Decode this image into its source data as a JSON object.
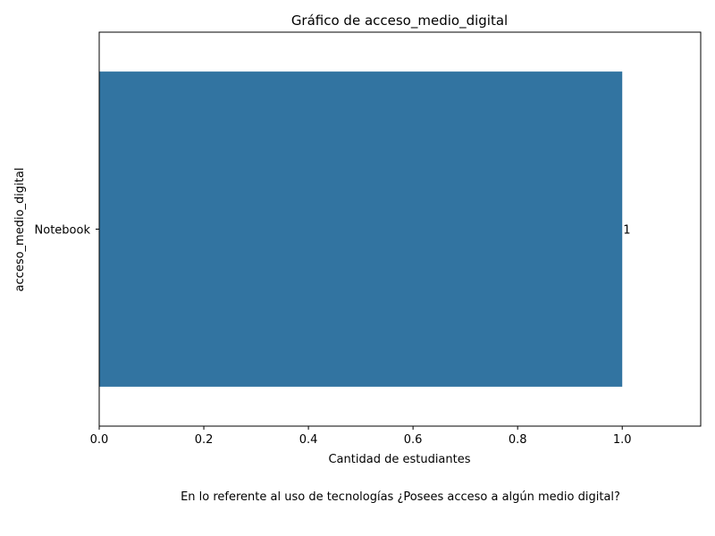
{
  "chart_data": {
    "type": "bar",
    "orientation": "horizontal",
    "title": "Gráfico de acceso_medio_digital",
    "xlabel": "Cantidad de estudiantes",
    "ylabel": "acceso_medio_digital",
    "categories": [
      "Notebook"
    ],
    "values": [
      1
    ],
    "data_labels": [
      "1"
    ],
    "xlim": [
      0,
      1.15
    ],
    "xticks": [
      0.0,
      0.2,
      0.4,
      0.6,
      0.8,
      1.0
    ],
    "xtick_labels": [
      "0.0",
      "0.2",
      "0.4",
      "0.6",
      "0.8",
      "1.0"
    ],
    "bar_color": "#3274a1",
    "grid": false
  },
  "caption": "En lo referente al uso de tecnologías ¿Posees acceso a algún medio digital?"
}
